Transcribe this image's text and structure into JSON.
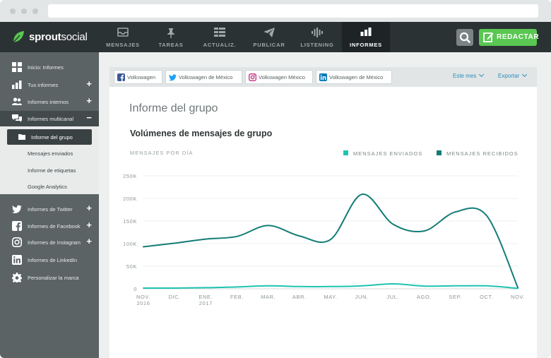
{
  "app": {
    "brand_bold": "sprout",
    "brand_light": "social",
    "brand_color": "#59c752"
  },
  "topnav": {
    "items": [
      {
        "label": "MENSAJES",
        "icon": "inbox-icon"
      },
      {
        "label": "TAREAS",
        "icon": "pin-icon"
      },
      {
        "label": "ACTUALIZ.",
        "icon": "grid-icon"
      },
      {
        "label": "PUBLICAR",
        "icon": "send-icon"
      },
      {
        "label": "LISTENING",
        "icon": "waveform-icon"
      },
      {
        "label": "INFORMES",
        "icon": "bar-chart-icon"
      }
    ],
    "active": "INFORMES",
    "compose_label": "REDACTAR"
  },
  "sidebar": {
    "items": [
      {
        "label": "Inicio: Informes",
        "icon": "dashboard-icon"
      },
      {
        "label": "Tus informes",
        "icon": "bar-chart-icon",
        "action": "+"
      },
      {
        "label": "Informes internos",
        "icon": "users-icon",
        "action": "+"
      },
      {
        "label": "Informes multicanal",
        "icon": "chat-icon",
        "action": "−"
      }
    ],
    "subitems": [
      {
        "label": "Informe del grupo",
        "icon": "folder-icon",
        "active": true
      },
      {
        "label": "Mensajes enviados"
      },
      {
        "label": "Informe de etiquetas"
      },
      {
        "label": "Google Analytics"
      }
    ],
    "networks": [
      {
        "label": "Informes de Twitter",
        "icon": "twitter-icon",
        "action": "+"
      },
      {
        "label": "Informes de Facebook",
        "icon": "facebook-icon",
        "action": "+"
      },
      {
        "label": "Informes de Instagram",
        "icon": "instagram-icon",
        "action": "+"
      },
      {
        "label": "Informes de LinkedIn",
        "icon": "linkedin-icon"
      },
      {
        "label": "Personalizar la marca",
        "icon": "gear-icon"
      }
    ]
  },
  "filters": {
    "profiles": [
      {
        "label": "Volkswagen",
        "network": "facebook",
        "color": "#3b5998"
      },
      {
        "label": "Volkswagen de México",
        "network": "twitter",
        "color": "#1da1f2"
      },
      {
        "label": "Volkswagen México",
        "network": "instagram",
        "color": "#c13584"
      },
      {
        "label": "Volkswagen de México",
        "network": "linkedin",
        "color": "#0077b5"
      }
    ],
    "period_label": "Este mes",
    "export_label": "Exportar"
  },
  "report": {
    "title": "Informe del grupo",
    "section_title": "Volúmenes de mensajes de grupo"
  },
  "chart_data": {
    "type": "line",
    "title": "Volúmenes de mensajes de grupo",
    "ylabel": "MENSAJES POR DÍA",
    "xlabel": "",
    "categories": [
      "NOV. 2016",
      "DIC.",
      "ENE. 2017",
      "FEB.",
      "MAR.",
      "ABR.",
      "MAY.",
      "JUN.",
      "JUL.",
      "AGO.",
      "SEP.",
      "OCT.",
      "NOV."
    ],
    "x_ticks": [
      [
        "NOV.",
        "2016"
      ],
      [
        "DIC."
      ],
      [
        "ENE.",
        "2017"
      ],
      [
        "FEB."
      ],
      [
        "MAR."
      ],
      [
        "ABR."
      ],
      [
        "MAY."
      ],
      [
        "JUN."
      ],
      [
        "JUL."
      ],
      [
        "AGO."
      ],
      [
        "SEP."
      ],
      [
        "OCT."
      ],
      [
        "NOV."
      ]
    ],
    "y_ticks": [
      "0",
      "50K",
      "100K",
      "150K",
      "200K",
      "250K"
    ],
    "ylim": [
      0,
      250000
    ],
    "grid": true,
    "legend_position": "top-right",
    "series": [
      {
        "name": "MENSAJES ENVIADOS",
        "color": "#1fc3b0",
        "values": [
          1500,
          1500,
          2500,
          4000,
          6500,
          5000,
          5000,
          6500,
          11000,
          6000,
          6500,
          6500,
          1000
        ]
      },
      {
        "name": "MENSAJES RECIBIDOS",
        "color": "#137c76",
        "values": [
          93000,
          101000,
          110000,
          116000,
          140000,
          117000,
          109000,
          209000,
          143000,
          128000,
          170000,
          162000,
          3000
        ]
      }
    ]
  }
}
